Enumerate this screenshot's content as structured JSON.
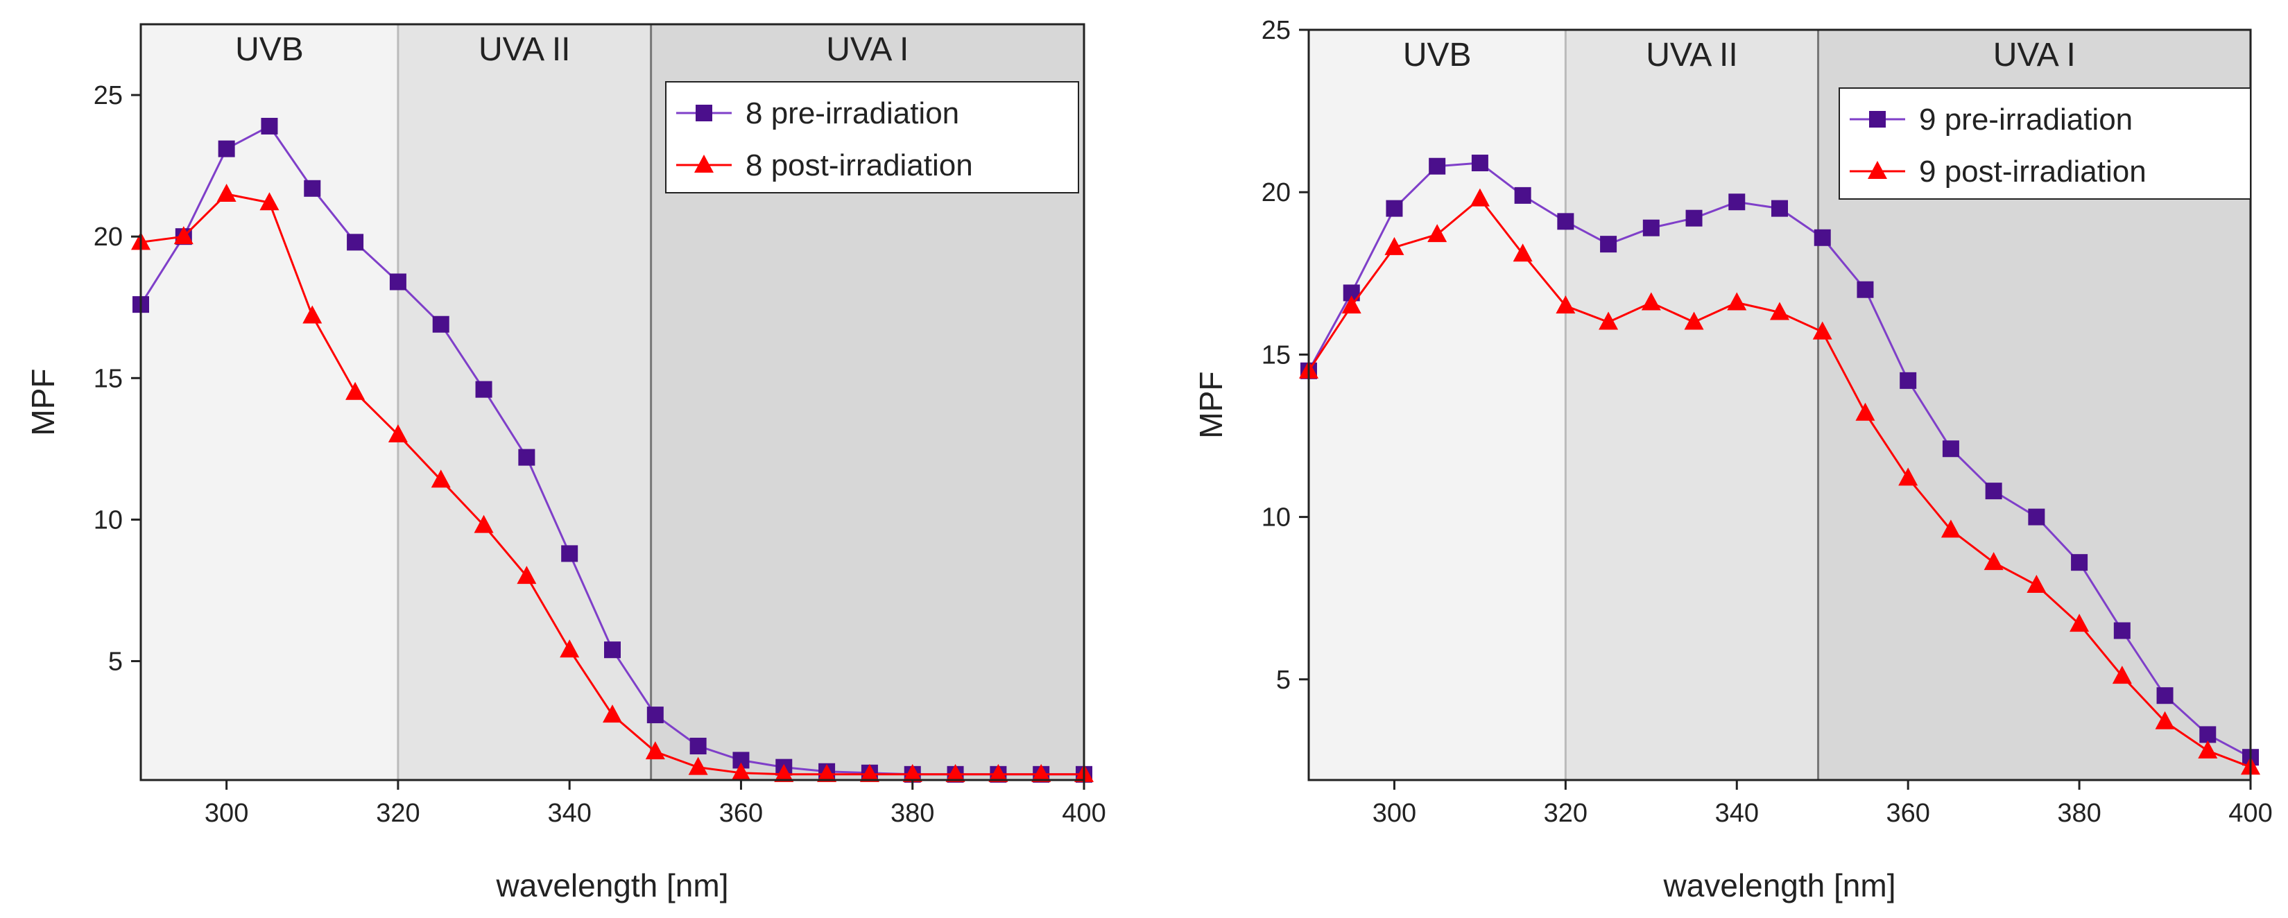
{
  "chart_data": [
    {
      "type": "line",
      "xlabel": "wavelength [nm]",
      "ylabel": "MPF",
      "xlim": [
        290,
        400
      ],
      "ylim": [
        0.8,
        27.5
      ],
      "xticks": [
        300,
        320,
        340,
        360,
        380,
        400
      ],
      "yticks": [
        5,
        10,
        15,
        20,
        25
      ],
      "regions": [
        {
          "label": "UVB",
          "from": 290,
          "to": 320,
          "color": "#f3f3f3"
        },
        {
          "label": "UVA II",
          "from": 320,
          "to": 349.5,
          "color": "#e4e4e4"
        },
        {
          "label": "UVA I",
          "from": 349.5,
          "to": 400,
          "color": "#d7d7d7"
        }
      ],
      "legend_position": "top-right",
      "x": [
        290,
        295,
        300,
        305,
        310,
        315,
        320,
        325,
        330,
        335,
        340,
        345,
        350,
        355,
        360,
        365,
        370,
        375,
        380,
        385,
        390,
        395,
        400
      ],
      "series": [
        {
          "name": "8 pre-irradiation",
          "marker": "square",
          "color": "#4b0f8c",
          "line_color": "#7f3fc9",
          "values": [
            17.6,
            20.0,
            23.1,
            23.9,
            21.7,
            19.8,
            18.4,
            16.9,
            14.6,
            12.2,
            8.8,
            5.4,
            3.1,
            2.0,
            1.5,
            1.25,
            1.1,
            1.05,
            1.0,
            1.0,
            1.0,
            1.0,
            1.0
          ]
        },
        {
          "name": "8 post-irradiation",
          "marker": "triangle",
          "color": "#ff0000",
          "line_color": "#ff0000",
          "values": [
            19.8,
            20.0,
            21.5,
            21.2,
            17.2,
            14.5,
            13.0,
            11.4,
            9.8,
            8.0,
            5.4,
            3.1,
            1.8,
            1.25,
            1.05,
            1.0,
            1.0,
            1.0,
            1.0,
            1.0,
            1.0,
            1.0,
            1.0
          ]
        }
      ]
    },
    {
      "type": "line",
      "xlabel": "wavelength [nm]",
      "ylabel": "MPF",
      "xlim": [
        290,
        400
      ],
      "ylim": [
        1.9,
        25
      ],
      "xticks": [
        300,
        320,
        340,
        360,
        380,
        400
      ],
      "yticks": [
        5,
        10,
        15,
        20,
        25
      ],
      "regions": [
        {
          "label": "UVB",
          "from": 290,
          "to": 320,
          "color": "#f3f3f3"
        },
        {
          "label": "UVA II",
          "from": 320,
          "to": 349.5,
          "color": "#e4e4e4"
        },
        {
          "label": "UVA I",
          "from": 349.5,
          "to": 400,
          "color": "#d7d7d7"
        }
      ],
      "legend_position": "top-right",
      "x": [
        290,
        295,
        300,
        305,
        310,
        315,
        320,
        325,
        330,
        335,
        340,
        345,
        350,
        355,
        360,
        365,
        370,
        375,
        380,
        385,
        390,
        395,
        400
      ],
      "series": [
        {
          "name": "9 pre-irradiation",
          "marker": "square",
          "color": "#4b0f8c",
          "line_color": "#7f3fc9",
          "values": [
            14.5,
            16.9,
            19.5,
            20.8,
            20.9,
            19.9,
            19.1,
            18.4,
            18.9,
            19.2,
            19.7,
            19.5,
            18.6,
            17.0,
            14.2,
            12.1,
            10.8,
            10.0,
            8.6,
            6.5,
            4.5,
            3.3,
            2.6
          ]
        },
        {
          "name": "9 post-irradiation",
          "marker": "triangle",
          "color": "#ff0000",
          "line_color": "#ff0000",
          "values": [
            14.5,
            16.5,
            18.3,
            18.7,
            19.8,
            18.1,
            16.5,
            16.0,
            16.6,
            16.0,
            16.6,
            16.3,
            15.7,
            13.2,
            11.2,
            9.6,
            8.6,
            7.9,
            6.7,
            5.1,
            3.7,
            2.8,
            2.3
          ]
        }
      ]
    }
  ]
}
